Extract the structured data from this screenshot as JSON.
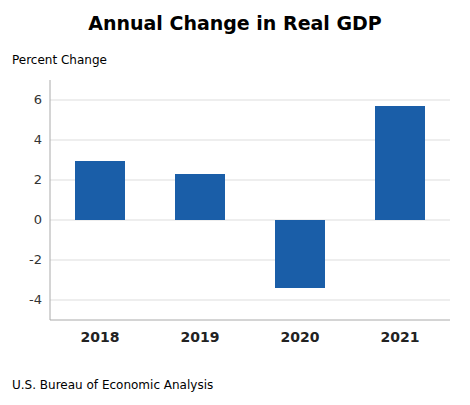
{
  "chart_data": {
    "type": "bar",
    "title": "Annual Change in Real GDP",
    "y_label": "Percent Change",
    "footnote": "U.S. Bureau of Economic Analysis",
    "categories": [
      "2018",
      "2019",
      "2020",
      "2021"
    ],
    "values": [
      2.95,
      2.3,
      -3.4,
      5.7
    ],
    "color": "#1a5ea8",
    "ylim": [
      -5,
      7
    ],
    "yticks": [
      -4,
      -2,
      0,
      2,
      4,
      6
    ],
    "grid": true
  }
}
